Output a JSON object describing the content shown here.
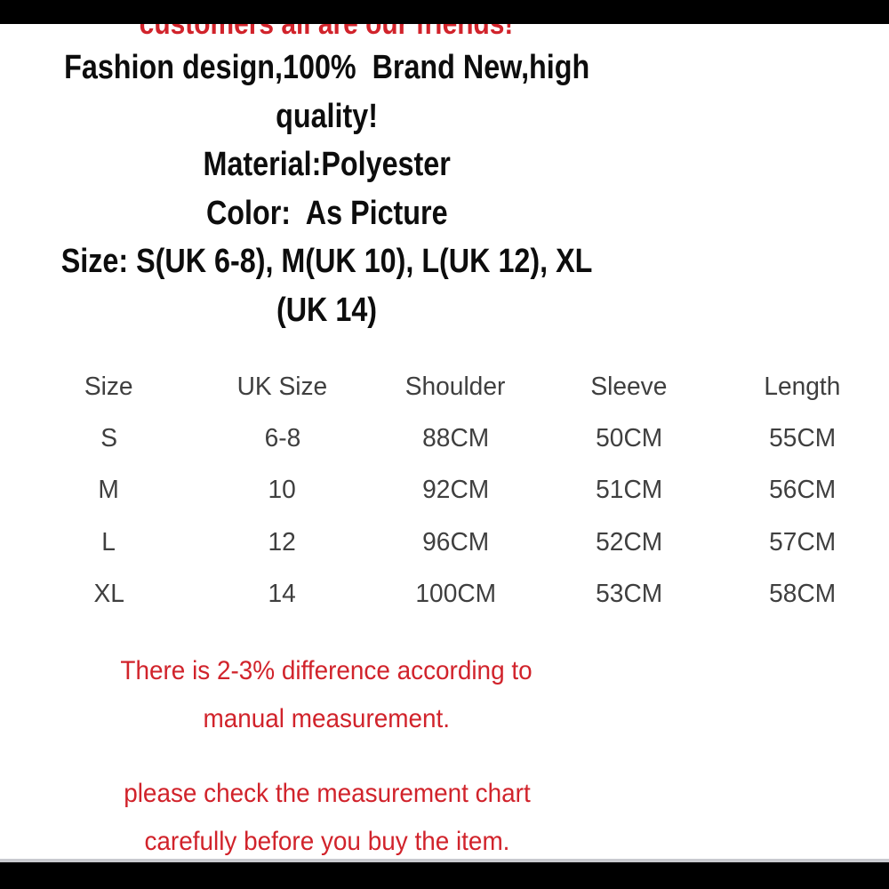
{
  "colors": {
    "accent_red": "#d1232b",
    "text_black": "#0d0d0d",
    "table_gray": "#3f3f3f",
    "letterbox_black": "#000000",
    "divider_gray": "#c9cacf",
    "background": "#ffffff"
  },
  "banner": {
    "text": "customers all are our friends!"
  },
  "intro": {
    "lines": [
      "Fashion design,100%  Brand New,high",
      "quality!",
      "Material:Polyester",
      "Color:  As Picture",
      "Size: S(UK 6-8), M(UK 10), L(UK 12), XL",
      "(UK 14)"
    ]
  },
  "size_table": {
    "headers": [
      "Size",
      "UK Size",
      "Shoulder",
      "Sleeve",
      "Length"
    ],
    "rows": [
      [
        "S",
        "6-8",
        "88CM",
        "50CM",
        "55CM"
      ],
      [
        "M",
        "10",
        "92CM",
        "51CM",
        "56CM"
      ],
      [
        "L",
        "12",
        "96CM",
        "52CM",
        "57CM"
      ],
      [
        "XL",
        "14",
        "100CM",
        "53CM",
        "58CM"
      ]
    ]
  },
  "notes": {
    "tolerance": [
      "There is 2-3% difference according to",
      "manual measurement."
    ],
    "advice": [
      "please check the measurement chart",
      "carefully before you buy the item."
    ]
  }
}
